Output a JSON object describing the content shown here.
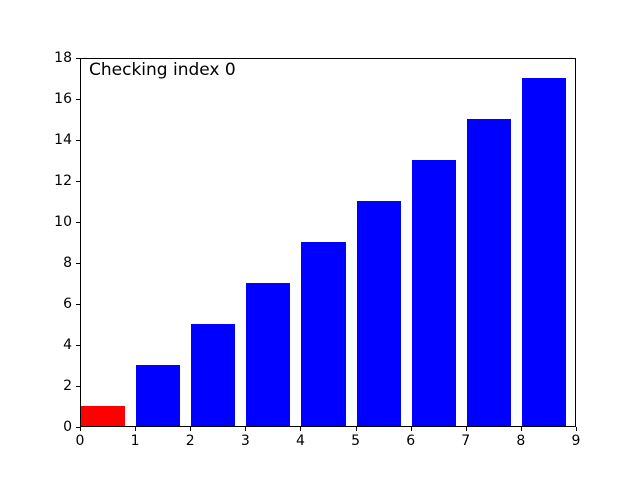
{
  "chart_data": {
    "type": "bar",
    "annotation": "Checking index 0",
    "x": [
      0,
      1,
      2,
      3,
      4,
      5,
      6,
      7,
      8
    ],
    "values": [
      1,
      3,
      5,
      7,
      9,
      11,
      13,
      15,
      17
    ],
    "bar_width": 0.8,
    "bar_align": "left-edge",
    "bar_colors": [
      "#ff0000",
      "#0000ff",
      "#0000ff",
      "#0000ff",
      "#0000ff",
      "#0000ff",
      "#0000ff",
      "#0000ff",
      "#0000ff"
    ],
    "xlim": [
      0,
      9
    ],
    "ylim": [
      0,
      18
    ],
    "xticks": [
      0,
      1,
      2,
      3,
      4,
      5,
      6,
      7,
      8,
      9
    ],
    "yticks": [
      0,
      2,
      4,
      6,
      8,
      10,
      12,
      14,
      16,
      18
    ],
    "xlabel": "",
    "ylabel": "",
    "title": "",
    "grid": false,
    "legend": null,
    "background_color": "#ffffff",
    "axes_edge_color": "#000000"
  }
}
